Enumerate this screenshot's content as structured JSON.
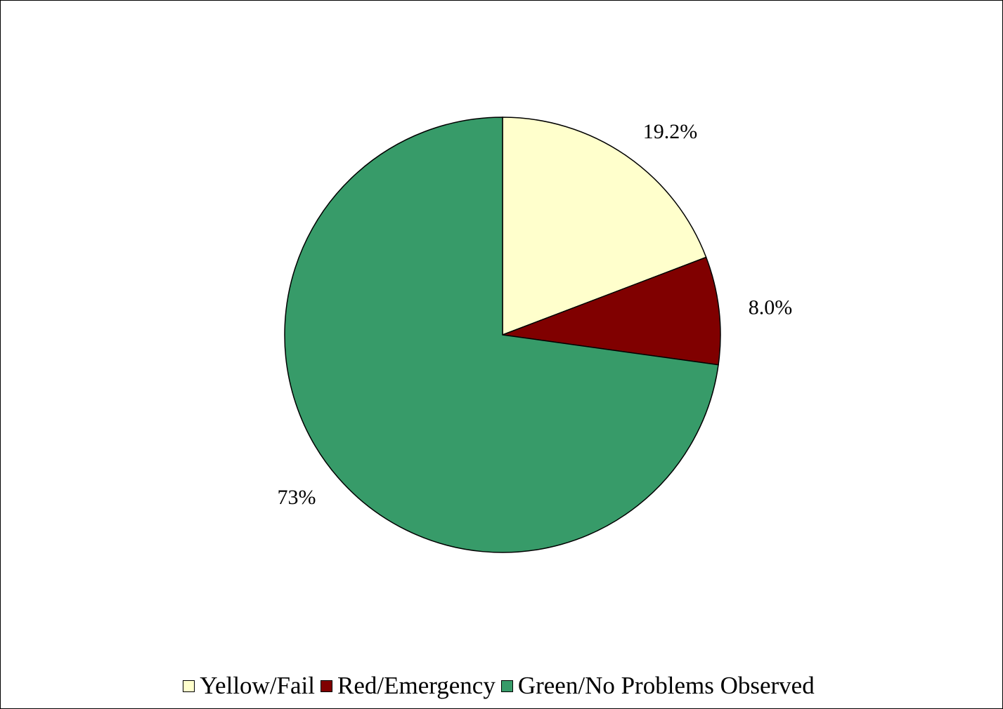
{
  "chart_data": {
    "type": "pie",
    "slices": [
      {
        "name": "Yellow/Fail",
        "value": 19.2,
        "label": "19.2%",
        "color": "#FFFFCC"
      },
      {
        "name": "Red/Emergency",
        "value": 8.0,
        "label": "8.0%",
        "color": "#800000"
      },
      {
        "name": "Green/No Problems Observed",
        "value": 72.8,
        "label": "73%",
        "color": "#379B69"
      }
    ],
    "start_angle_deg": 0,
    "direction": "clockwise",
    "legend_position": "bottom"
  }
}
